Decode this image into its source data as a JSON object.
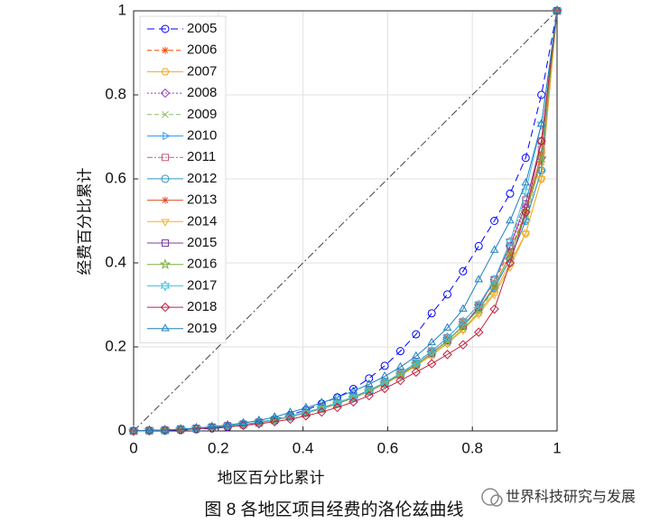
{
  "chart_data": {
    "type": "line",
    "caption": "图 8 各地区项目经费的洛伦兹曲线",
    "watermark": "世界科技研究与发展",
    "xlabel": "地区百分比累计",
    "ylabel": "经费百分比累计",
    "xlim": [
      0,
      1
    ],
    "ylim": [
      0,
      1
    ],
    "xticks": [
      0,
      0.2,
      0.4,
      0.6,
      0.8,
      1
    ],
    "yticks": [
      0,
      0.2,
      0.4,
      0.6,
      0.8,
      1
    ],
    "grid": true,
    "legend": "upper left",
    "x": [
      0,
      0.037,
      0.074,
      0.111,
      0.148,
      0.185,
      0.222,
      0.259,
      0.296,
      0.333,
      0.37,
      0.407,
      0.444,
      0.481,
      0.519,
      0.556,
      0.593,
      0.63,
      0.667,
      0.704,
      0.741,
      0.778,
      0.815,
      0.852,
      0.889,
      0.926,
      0.963,
      1
    ],
    "series": [
      {
        "name": "2005",
        "color": "#0000ff",
        "marker": "circle",
        "dash": "8,5",
        "values": [
          0,
          0.0005,
          0.001,
          0.002,
          0.004,
          0.006,
          0.009,
          0.014,
          0.02,
          0.028,
          0.038,
          0.05,
          0.065,
          0.08,
          0.1,
          0.125,
          0.155,
          0.19,
          0.23,
          0.28,
          0.325,
          0.38,
          0.44,
          0.5,
          0.565,
          0.65,
          0.8,
          1
        ]
      },
      {
        "name": "2006",
        "color": "#ff4500",
        "marker": "asterisk",
        "dash": "5,3",
        "values": [
          0,
          0.001,
          0.002,
          0.004,
          0.006,
          0.009,
          0.012,
          0.016,
          0.021,
          0.027,
          0.035,
          0.044,
          0.055,
          0.067,
          0.081,
          0.097,
          0.115,
          0.137,
          0.162,
          0.19,
          0.222,
          0.26,
          0.3,
          0.355,
          0.43,
          0.52,
          0.64,
          1
        ]
      },
      {
        "name": "2007",
        "color": "#f5a623",
        "marker": "hexagon",
        "dash": "",
        "values": [
          0,
          0.001,
          0.002,
          0.004,
          0.006,
          0.009,
          0.012,
          0.016,
          0.02,
          0.026,
          0.034,
          0.043,
          0.053,
          0.065,
          0.079,
          0.094,
          0.112,
          0.132,
          0.155,
          0.181,
          0.21,
          0.243,
          0.282,
          0.33,
          0.4,
          0.47,
          0.6,
          1
        ]
      },
      {
        "name": "2008",
        "color": "#9b3fc0",
        "marker": "diamond",
        "dash": "2,2",
        "values": [
          0,
          0.001,
          0.002,
          0.004,
          0.006,
          0.009,
          0.012,
          0.016,
          0.021,
          0.027,
          0.035,
          0.044,
          0.055,
          0.067,
          0.081,
          0.097,
          0.115,
          0.137,
          0.162,
          0.19,
          0.222,
          0.26,
          0.3,
          0.36,
          0.44,
          0.53,
          0.65,
          1
        ]
      },
      {
        "name": "2009",
        "color": "#8fbf5f",
        "marker": "x",
        "dash": "5,3",
        "values": [
          0,
          0.001,
          0.002,
          0.004,
          0.006,
          0.009,
          0.012,
          0.016,
          0.02,
          0.026,
          0.034,
          0.043,
          0.053,
          0.065,
          0.079,
          0.094,
          0.112,
          0.132,
          0.155,
          0.181,
          0.21,
          0.243,
          0.282,
          0.34,
          0.41,
          0.5,
          0.65,
          1
        ]
      },
      {
        "name": "2010",
        "color": "#3399ff",
        "marker": "tri-right",
        "dash": "",
        "values": [
          0,
          0.001,
          0.002,
          0.004,
          0.006,
          0.009,
          0.012,
          0.016,
          0.02,
          0.026,
          0.034,
          0.043,
          0.053,
          0.065,
          0.079,
          0.095,
          0.113,
          0.134,
          0.158,
          0.185,
          0.215,
          0.25,
          0.29,
          0.34,
          0.41,
          0.5,
          0.62,
          1
        ]
      },
      {
        "name": "2011",
        "color": "#c0607f",
        "marker": "square",
        "dash": "6,2,2,2",
        "values": [
          0,
          0.001,
          0.002,
          0.004,
          0.006,
          0.009,
          0.012,
          0.016,
          0.021,
          0.027,
          0.035,
          0.044,
          0.055,
          0.067,
          0.081,
          0.097,
          0.115,
          0.137,
          0.162,
          0.19,
          0.222,
          0.26,
          0.3,
          0.36,
          0.45,
          0.55,
          0.67,
          1
        ]
      },
      {
        "name": "2012",
        "color": "#2f95c8",
        "marker": "circle",
        "dash": "",
        "values": [
          0,
          0.001,
          0.002,
          0.004,
          0.006,
          0.009,
          0.012,
          0.016,
          0.02,
          0.026,
          0.034,
          0.043,
          0.053,
          0.065,
          0.079,
          0.095,
          0.113,
          0.134,
          0.158,
          0.185,
          0.215,
          0.25,
          0.29,
          0.34,
          0.41,
          0.5,
          0.62,
          1
        ]
      },
      {
        "name": "2013",
        "color": "#e0502a",
        "marker": "asterisk",
        "dash": "",
        "values": [
          0,
          0.001,
          0.002,
          0.004,
          0.006,
          0.009,
          0.012,
          0.016,
          0.02,
          0.026,
          0.034,
          0.043,
          0.053,
          0.065,
          0.079,
          0.095,
          0.113,
          0.134,
          0.158,
          0.185,
          0.215,
          0.25,
          0.29,
          0.345,
          0.42,
          0.52,
          0.66,
          1
        ]
      },
      {
        "name": "2014",
        "color": "#f2b02a",
        "marker": "tri-down",
        "dash": "",
        "values": [
          0,
          0.001,
          0.002,
          0.004,
          0.006,
          0.009,
          0.012,
          0.016,
          0.02,
          0.026,
          0.034,
          0.043,
          0.053,
          0.065,
          0.079,
          0.094,
          0.112,
          0.132,
          0.155,
          0.18,
          0.208,
          0.24,
          0.278,
          0.325,
          0.39,
          0.47,
          0.6,
          1
        ]
      },
      {
        "name": "2015",
        "color": "#7e3f9e",
        "marker": "square",
        "dash": "",
        "values": [
          0,
          0.001,
          0.002,
          0.004,
          0.006,
          0.009,
          0.012,
          0.016,
          0.02,
          0.026,
          0.034,
          0.043,
          0.053,
          0.065,
          0.079,
          0.095,
          0.113,
          0.134,
          0.158,
          0.185,
          0.215,
          0.25,
          0.295,
          0.36,
          0.44,
          0.54,
          0.69,
          1
        ]
      },
      {
        "name": "2016",
        "color": "#7fae3f",
        "marker": "pentagram",
        "dash": "",
        "values": [
          0,
          0.001,
          0.002,
          0.004,
          0.006,
          0.009,
          0.012,
          0.016,
          0.02,
          0.026,
          0.034,
          0.043,
          0.053,
          0.065,
          0.079,
          0.095,
          0.113,
          0.134,
          0.158,
          0.185,
          0.215,
          0.25,
          0.29,
          0.345,
          0.42,
          0.52,
          0.65,
          1
        ]
      },
      {
        "name": "2017",
        "color": "#3fbfe0",
        "marker": "hexagram",
        "dash": "",
        "values": [
          0,
          0.001,
          0.002,
          0.004,
          0.006,
          0.009,
          0.012,
          0.016,
          0.021,
          0.027,
          0.035,
          0.044,
          0.055,
          0.067,
          0.081,
          0.097,
          0.115,
          0.137,
          0.162,
          0.19,
          0.222,
          0.26,
          0.3,
          0.36,
          0.45,
          0.57,
          0.73,
          1
        ]
      },
      {
        "name": "2018",
        "color": "#c0203f",
        "marker": "diamond",
        "dash": "",
        "values": [
          0,
          0.001,
          0.002,
          0.003,
          0.005,
          0.007,
          0.01,
          0.013,
          0.017,
          0.022,
          0.028,
          0.036,
          0.045,
          0.056,
          0.069,
          0.084,
          0.101,
          0.12,
          0.14,
          0.16,
          0.182,
          0.205,
          0.235,
          0.29,
          0.4,
          0.52,
          0.69,
          1
        ]
      },
      {
        "name": "2019",
        "color": "#1f7fbf",
        "marker": "tri-up",
        "dash": "",
        "values": [
          0,
          0.001,
          0.002,
          0.004,
          0.007,
          0.01,
          0.014,
          0.019,
          0.025,
          0.033,
          0.044,
          0.055,
          0.067,
          0.08,
          0.095,
          0.111,
          0.13,
          0.152,
          0.178,
          0.21,
          0.245,
          0.29,
          0.36,
          0.43,
          0.5,
          0.59,
          0.73,
          1
        ]
      }
    ]
  }
}
